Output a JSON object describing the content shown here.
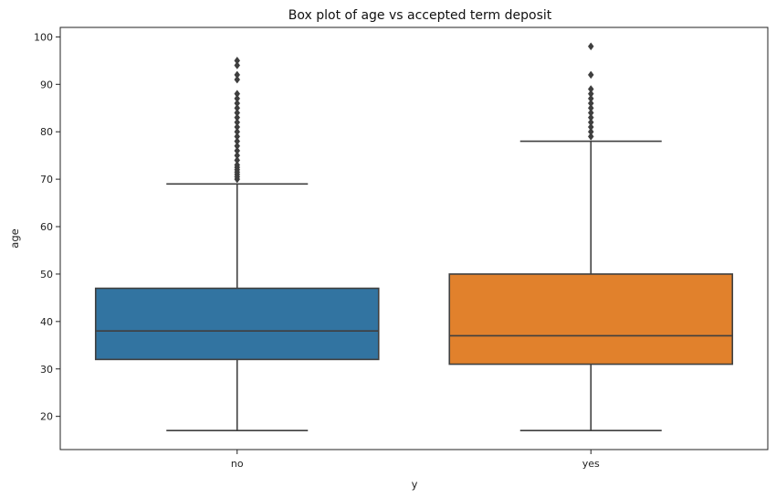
{
  "chart_data": {
    "type": "box",
    "title": "Box plot of age vs accepted term deposit",
    "xlabel": "y",
    "ylabel": "age",
    "categories": [
      "no",
      "yes"
    ],
    "ylim": [
      13,
      102
    ],
    "yticks": [
      20,
      30,
      40,
      50,
      60,
      70,
      80,
      90,
      100
    ],
    "grid": false,
    "boxes": [
      {
        "category": "no",
        "color": "#3274a1",
        "whisker_low": 17,
        "q1": 32,
        "median": 38,
        "q3": 47,
        "whisker_high": 69,
        "outliers": [
          70,
          70.5,
          71,
          71.5,
          72,
          72.5,
          73,
          74,
          75,
          76,
          77,
          78,
          79,
          80,
          81,
          82,
          83,
          84,
          85,
          86,
          87,
          88,
          91,
          92,
          94,
          95
        ]
      },
      {
        "category": "yes",
        "color": "#e1812c",
        "whisker_low": 17,
        "q1": 31,
        "median": 37,
        "q3": 50,
        "whisker_high": 78,
        "outliers": [
          79,
          80,
          81,
          82,
          83,
          84,
          85,
          86,
          87,
          88,
          89,
          92,
          98
        ]
      }
    ]
  }
}
